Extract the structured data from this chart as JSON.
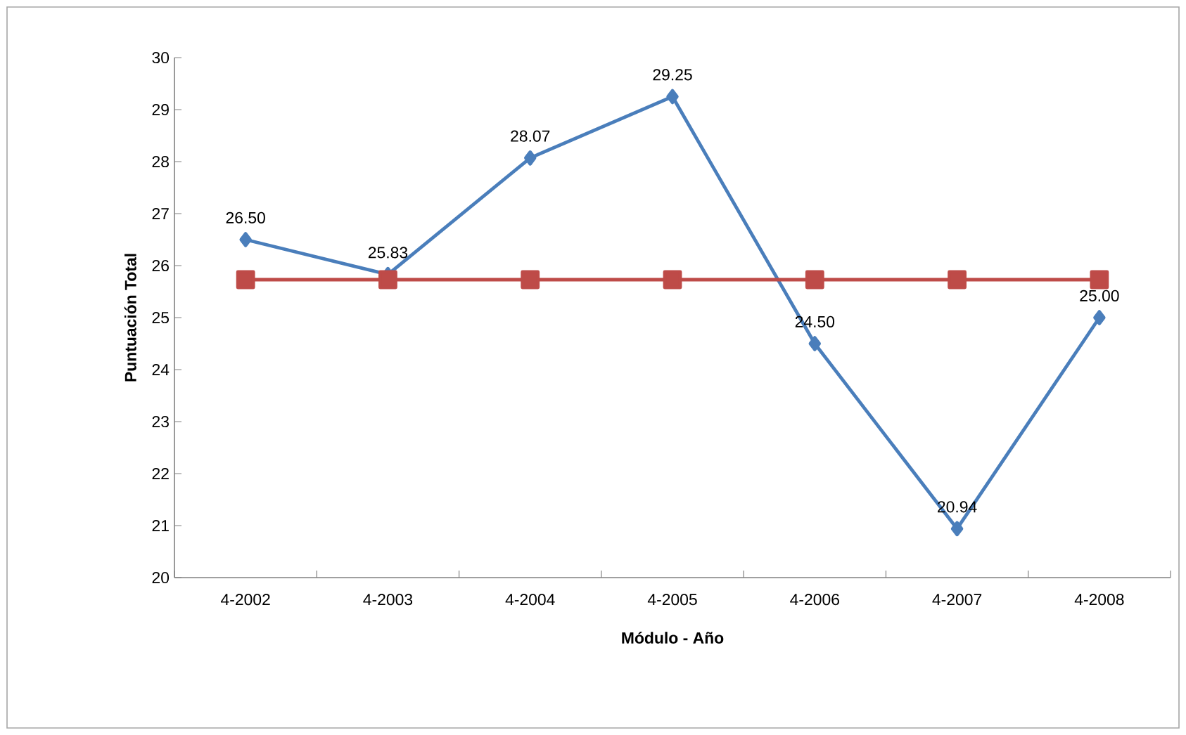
{
  "chart_data": {
    "type": "line",
    "xlabel": "Módulo - Año",
    "ylabel": "Puntuación Total",
    "categories": [
      "4-2002",
      "4-2003",
      "4-2004",
      "4-2005",
      "4-2006",
      "4-2007",
      "4-2008"
    ],
    "series": [
      {
        "color": "#4a7ebb",
        "marker": "diamond",
        "values": [
          26.5,
          25.83,
          28.07,
          29.25,
          24.5,
          20.94,
          25.0
        ],
        "value_labels": [
          "26.50",
          "25.83",
          "28.07",
          "29.25",
          "24.50",
          "20.94",
          "25.00"
        ]
      },
      {
        "color": "#be4b48",
        "marker": "square",
        "values": [
          25.73,
          25.73,
          25.73,
          25.73,
          25.73,
          25.73,
          25.73
        ]
      }
    ],
    "ylim": [
      20,
      30
    ],
    "yticks": [
      20,
      21,
      22,
      23,
      24,
      25,
      26,
      27,
      28,
      29,
      30
    ],
    "grid": false
  }
}
